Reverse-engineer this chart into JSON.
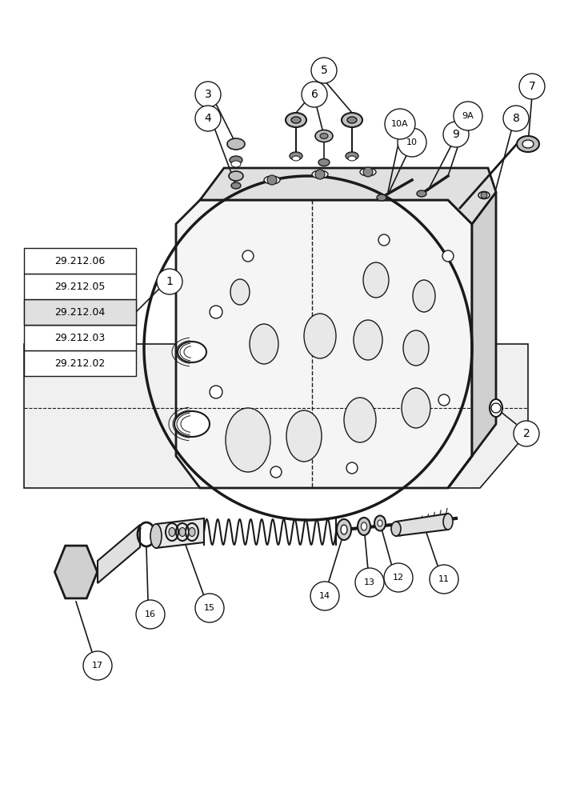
{
  "bg_color": "#ffffff",
  "line_color": "#1a1a1a",
  "label_refs": [
    "29.212.02",
    "29.212.03",
    "29.212.04",
    "29.212.05",
    "29.212.06"
  ],
  "figsize": [
    7.2,
    10.0
  ],
  "dpi": 100
}
